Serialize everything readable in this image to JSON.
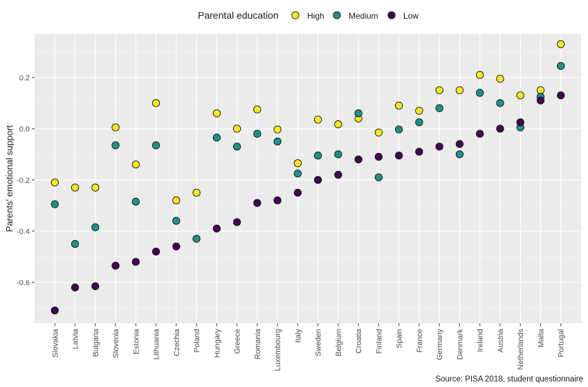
{
  "chart_data": {
    "type": "scatter",
    "ylabel": "Parents' emotional support",
    "xlabel": "",
    "ylim": [
      -0.76,
      0.37
    ],
    "yticks": [
      -0.6,
      -0.4,
      -0.2,
      0.0,
      0.2
    ],
    "ytick_labels": [
      "-0.6",
      "-0.4",
      "-0.2",
      "0.0",
      "0.2"
    ],
    "legend": {
      "title": "Parental education",
      "placement": "top"
    },
    "grid": true,
    "caption": "Source: PISA 2018, student questionnaire",
    "categories": [
      "Slovakia",
      "Latvia",
      "Bulgaria",
      "Slovenia",
      "Estonia",
      "Lithuania",
      "Czechia",
      "Poland",
      "Hungary",
      "Greece",
      "Romania",
      "Luxembourg",
      "Italy",
      "Sweden",
      "Belgium",
      "Croatia",
      "Finland",
      "Spain",
      "France",
      "Germany",
      "Denmark",
      "Ireland",
      "Austria",
      "Netherlands",
      "Malta",
      "Portugal"
    ],
    "series": [
      {
        "name": "High",
        "color": "#fde725",
        "values": [
          -0.21,
          -0.23,
          -0.23,
          0.005,
          -0.14,
          0.1,
          -0.28,
          -0.25,
          0.06,
          0.0,
          0.075,
          -0.003,
          -0.135,
          0.035,
          0.017,
          0.04,
          -0.015,
          0.09,
          0.07,
          0.15,
          0.15,
          0.21,
          0.195,
          0.13,
          0.15,
          0.33
        ]
      },
      {
        "name": "Medium",
        "color": "#21908d",
        "values": [
          -0.295,
          -0.45,
          -0.385,
          -0.065,
          -0.285,
          -0.065,
          -0.36,
          -0.43,
          -0.035,
          -0.07,
          -0.02,
          -0.05,
          -0.175,
          -0.105,
          -0.1,
          0.06,
          -0.19,
          -0.003,
          0.025,
          0.08,
          -0.1,
          0.14,
          0.1,
          0.005,
          0.125,
          0.245
        ]
      },
      {
        "name": "Low",
        "color": "#440154",
        "values": [
          -0.71,
          -0.62,
          -0.615,
          -0.535,
          -0.52,
          -0.48,
          -0.46,
          null,
          -0.39,
          -0.365,
          -0.29,
          -0.28,
          -0.25,
          -0.2,
          -0.18,
          -0.12,
          -0.11,
          -0.105,
          -0.09,
          -0.07,
          -0.06,
          -0.02,
          0.0,
          0.025,
          0.11,
          0.13
        ]
      }
    ]
  }
}
